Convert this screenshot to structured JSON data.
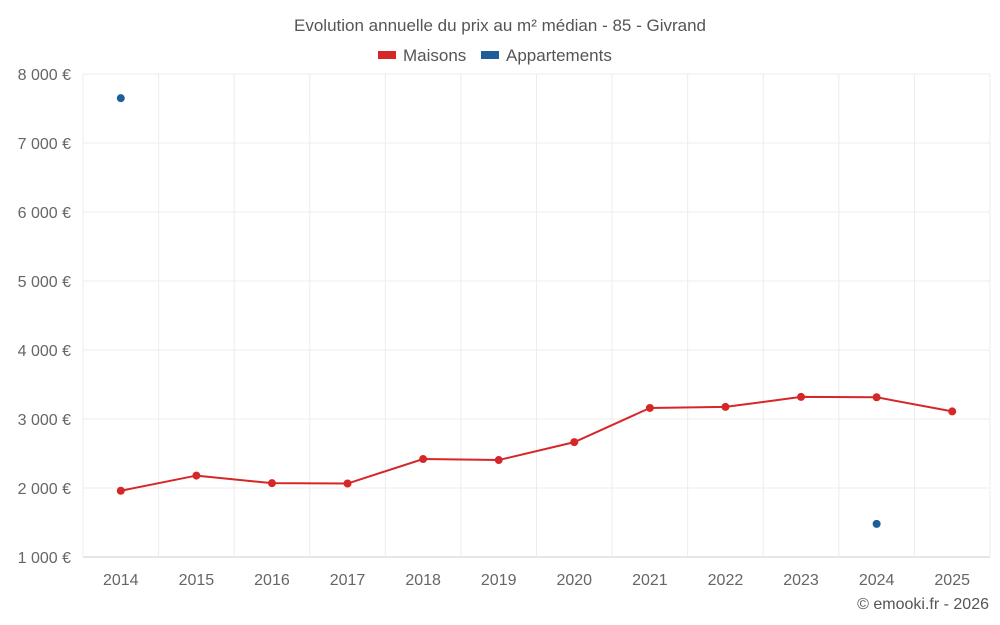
{
  "colors": {
    "maisons": "#d62728",
    "appartements": "#1f5f99",
    "grid": "#ececec",
    "text": "#555555"
  },
  "credit": "© emooki.fr - 2026",
  "chart_data": {
    "type": "line",
    "title": "Evolution annuelle du prix au m² médian - 85 - Givrand",
    "categories": [
      "2014",
      "2015",
      "2016",
      "2017",
      "2018",
      "2019",
      "2020",
      "2021",
      "2022",
      "2023",
      "2024",
      "2025"
    ],
    "ylim": [
      1000,
      8000
    ],
    "yticks": [
      1000,
      2000,
      3000,
      4000,
      5000,
      6000,
      7000,
      8000
    ],
    "ytick_labels": [
      "1 000 €",
      "2 000 €",
      "3 000 €",
      "4 000 €",
      "5 000 €",
      "6 000 €",
      "7 000 €",
      "8 000 €"
    ],
    "legend_position": "top-center",
    "series": [
      {
        "name": "Maisons",
        "color": "#d62728",
        "line": true,
        "values": [
          1960,
          2180,
          2070,
          2065,
          2420,
          2405,
          2665,
          3160,
          3175,
          3320,
          3315,
          3110
        ]
      },
      {
        "name": "Appartements",
        "color": "#1f5f99",
        "line": false,
        "values": [
          7650,
          null,
          null,
          null,
          null,
          null,
          null,
          null,
          null,
          null,
          1480,
          null
        ]
      }
    ]
  }
}
